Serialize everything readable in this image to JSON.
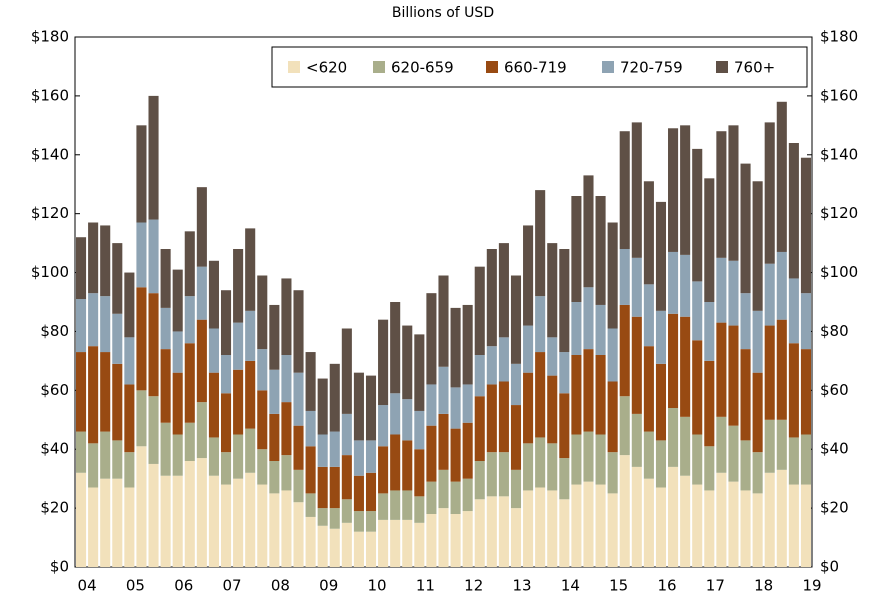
{
  "chart_data": {
    "type": "stacked_bar",
    "subtitle": "Billions of USD",
    "categories": [
      "04",
      null,
      null,
      null,
      "05",
      null,
      null,
      null,
      "06",
      null,
      null,
      null,
      "07",
      null,
      null,
      null,
      "08",
      null,
      null,
      null,
      "09",
      null,
      null,
      null,
      "10",
      null,
      null,
      null,
      "11",
      null,
      null,
      null,
      "12",
      null,
      null,
      null,
      "13",
      null,
      null,
      null,
      "14",
      null,
      null,
      null,
      "15",
      null,
      null,
      null,
      "16",
      null,
      null,
      null,
      "17",
      null,
      null,
      null,
      "18",
      null,
      null,
      null,
      "19"
    ],
    "series": [
      {
        "name": "<620",
        "color": "#f2e1bb",
        "values": [
          32,
          27,
          30,
          30,
          27,
          41,
          35,
          31,
          31,
          36,
          37,
          31,
          28,
          30,
          32,
          28,
          25,
          26,
          22,
          17,
          14,
          13,
          15,
          12,
          12,
          16,
          16,
          16,
          15,
          18,
          20,
          18,
          19,
          23,
          24,
          24,
          20,
          26,
          27,
          26,
          23,
          28,
          29,
          28,
          25,
          38,
          34,
          30,
          27,
          34,
          31,
          28,
          26,
          32,
          29,
          26,
          25,
          32,
          33,
          28,
          28
        ]
      },
      {
        "name": "620-659",
        "color": "#a9ae8b",
        "values": [
          14,
          15,
          16,
          13,
          12,
          19,
          23,
          18,
          14,
          13,
          19,
          13,
          11,
          15,
          15,
          12,
          11,
          12,
          11,
          8,
          6,
          7,
          8,
          7,
          7,
          9,
          10,
          10,
          9,
          11,
          13,
          11,
          11,
          13,
          15,
          15,
          13,
          16,
          17,
          16,
          14,
          17,
          17,
          17,
          14,
          20,
          18,
          16,
          16,
          20,
          20,
          17,
          15,
          19,
          19,
          17,
          14,
          18,
          17,
          16,
          17
        ]
      },
      {
        "name": "660-719",
        "color": "#984a12",
        "values": [
          27,
          33,
          27,
          26,
          23,
          35,
          35,
          25,
          21,
          27,
          28,
          22,
          20,
          22,
          23,
          20,
          16,
          18,
          15,
          16,
          14,
          14,
          15,
          12,
          13,
          16,
          19,
          17,
          16,
          19,
          19,
          18,
          19,
          22,
          23,
          24,
          22,
          24,
          29,
          23,
          22,
          27,
          28,
          27,
          24,
          31,
          33,
          29,
          26,
          32,
          34,
          32,
          29,
          32,
          34,
          31,
          27,
          32,
          34,
          32,
          29
        ]
      },
      {
        "name": "720-759",
        "color": "#8ea3b3",
        "values": [
          18,
          18,
          19,
          17,
          16,
          22,
          25,
          14,
          14,
          16,
          18,
          15,
          13,
          16,
          17,
          14,
          15,
          16,
          18,
          12,
          11,
          12,
          14,
          12,
          11,
          14,
          14,
          14,
          13,
          14,
          16,
          14,
          13,
          14,
          13,
          15,
          14,
          16,
          19,
          13,
          14,
          18,
          21,
          17,
          18,
          19,
          20,
          21,
          18,
          21,
          21,
          20,
          20,
          22,
          22,
          19,
          21,
          21,
          23,
          22,
          19
        ]
      },
      {
        "name": "760+",
        "color": "#5f5046",
        "values": [
          21,
          24,
          24,
          24,
          22,
          33,
          42,
          20,
          21,
          22,
          27,
          23,
          22,
          25,
          28,
          25,
          22,
          26,
          28,
          20,
          19,
          23,
          29,
          23,
          22,
          29,
          31,
          25,
          26,
          31,
          31,
          27,
          27,
          30,
          33,
          32,
          30,
          34,
          36,
          32,
          35,
          36,
          38,
          37,
          36,
          40,
          46,
          35,
          37,
          42,
          44,
          45,
          42,
          43,
          46,
          44,
          44,
          48,
          51,
          46,
          46
        ]
      }
    ],
    "ylim": [
      0,
      180
    ],
    "yticks": [
      {
        "value": 0,
        "label": "$0"
      },
      {
        "value": 20,
        "label": "$20"
      },
      {
        "value": 40,
        "label": "$40"
      },
      {
        "value": 60,
        "label": "$60"
      },
      {
        "value": 80,
        "label": "$80"
      },
      {
        "value": 100,
        "label": "$100"
      },
      {
        "value": 120,
        "label": "$120"
      },
      {
        "value": 140,
        "label": "$140"
      },
      {
        "value": 160,
        "label": "$160"
      },
      {
        "value": 180,
        "label": "$180"
      }
    ],
    "legend": "top-right"
  }
}
